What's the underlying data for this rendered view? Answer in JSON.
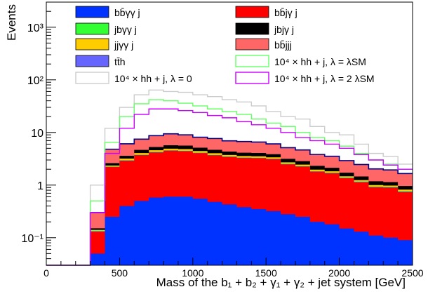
{
  "chart_data": {
    "type": "histogram",
    "stacked": true,
    "ylog": true,
    "xlabel": "Mass of the b₁ + b₂ + γ₁ + γ₂ + jet system [GeV]",
    "ylabel": "Events",
    "xlim": [
      0,
      2500
    ],
    "ylim": [
      0.03,
      3000
    ],
    "x_ticks": [
      0,
      500,
      1000,
      1500,
      2000,
      2500
    ],
    "y_ticks": [
      {
        "value": 0.1,
        "label": "10⁻¹"
      },
      {
        "value": 1,
        "label": "1"
      },
      {
        "value": 10,
        "label": "10"
      },
      {
        "value": 100,
        "label": "10²"
      },
      {
        "value": 1000,
        "label": "10³"
      }
    ],
    "bin_edges": [
      0,
      100,
      200,
      300,
      400,
      500,
      600,
      700,
      800,
      900,
      1000,
      1100,
      1200,
      1300,
      1400,
      1500,
      1600,
      1700,
      1800,
      1900,
      2000,
      2100,
      2200,
      2300,
      2400,
      2500
    ],
    "legend": [
      {
        "label": "bb̄γγ j",
        "series": "bbaa",
        "style": "fill",
        "color": "#0033ff"
      },
      {
        "label": "bb̄jγ j",
        "series": "bbja",
        "style": "fill",
        "color": "#ff0000"
      },
      {
        "label": "jbγγ j",
        "series": "jbaa",
        "style": "fill",
        "color": "#33ff33"
      },
      {
        "label": "jbjγ j",
        "series": "jbja",
        "style": "fill",
        "color": "#000000"
      },
      {
        "label": "jjγγ j",
        "series": "jjaa",
        "style": "fill",
        "color": "#ffcc00"
      },
      {
        "label": "bb̄jjj",
        "series": "bbjj",
        "style": "fill",
        "color": "#ff6666"
      },
      {
        "label": "tt̄h",
        "series": "tth",
        "style": "fill",
        "color": "#6666ff"
      },
      {
        "label": "10⁴ × hh + j,  λ = λSM",
        "series": "hh_sm",
        "style": "line",
        "color": "#66ff66"
      },
      {
        "label": "10⁴ × hh + j,  λ = 0",
        "series": "hh_0",
        "style": "line",
        "color": "#cccccc"
      },
      {
        "label": "10⁴ × hh + j,  λ = 2 λSM",
        "series": "hh_2sm",
        "style": "line",
        "color": "#cc00ff"
      }
    ],
    "stack_order": [
      "bbaa",
      "bbja",
      "tth",
      "jbaa",
      "jjaa",
      "jbja",
      "bbjj"
    ],
    "stack_series": [
      {
        "id": "bbaa",
        "color": "#0033ff",
        "values": [
          0,
          0,
          0,
          0.05,
          0.25,
          0.4,
          0.5,
          0.58,
          0.6,
          0.6,
          0.55,
          0.48,
          0.43,
          0.38,
          0.35,
          0.32,
          0.28,
          0.25,
          0.2,
          0.18,
          0.15,
          0.13,
          0.11,
          0.1,
          0.09
        ]
      },
      {
        "id": "bbja",
        "color": "#ff0000",
        "values": [
          0,
          0,
          0,
          0.08,
          1.95,
          2.5,
          3.2,
          3.6,
          3.9,
          3.8,
          3.5,
          3.2,
          3.0,
          2.9,
          2.9,
          2.8,
          2.2,
          2.0,
          1.6,
          1.5,
          1.2,
          1.0,
          0.8,
          0.8,
          0.65
        ]
      },
      {
        "id": "tth",
        "color": "#6666ff",
        "values": [
          0,
          0,
          0,
          0.003,
          0.03,
          0.04,
          0.05,
          0.05,
          0.05,
          0.05,
          0.04,
          0.04,
          0.04,
          0.04,
          0.03,
          0.03,
          0.03,
          0.03,
          0.02,
          0.02,
          0.02,
          0.02,
          0.01,
          0.01,
          0.01
        ]
      },
      {
        "id": "jbaa",
        "color": "#33ff33",
        "values": [
          0,
          0,
          0,
          0.003,
          0.03,
          0.05,
          0.06,
          0.07,
          0.07,
          0.07,
          0.06,
          0.06,
          0.05,
          0.05,
          0.05,
          0.04,
          0.04,
          0.03,
          0.03,
          0.03,
          0.02,
          0.02,
          0.02,
          0.02,
          0.02
        ]
      },
      {
        "id": "jjaa",
        "color": "#ffcc00",
        "values": [
          0,
          0,
          0,
          0.005,
          0.1,
          0.2,
          0.25,
          0.3,
          0.3,
          0.3,
          0.28,
          0.25,
          0.22,
          0.2,
          0.2,
          0.18,
          0.15,
          0.14,
          0.12,
          0.1,
          0.08,
          0.07,
          0.06,
          0.05,
          0.05
        ]
      },
      {
        "id": "jbja",
        "color": "#000000",
        "values": [
          0,
          0,
          0,
          0.01,
          0.25,
          0.4,
          0.6,
          0.7,
          0.8,
          0.8,
          0.7,
          0.65,
          0.6,
          0.55,
          0.55,
          0.5,
          0.45,
          0.4,
          0.35,
          0.3,
          0.25,
          0.22,
          0.18,
          0.16,
          0.14
        ]
      },
      {
        "id": "bbjj",
        "color": "#ff6666",
        "values": [
          0,
          0,
          0,
          0.15,
          2.2,
          2.5,
          2.8,
          3.4,
          3.7,
          3.4,
          3.0,
          3.0,
          2.6,
          2.6,
          2.5,
          2.2,
          2.0,
          1.8,
          1.5,
          1.4,
          1.2,
          1.0,
          0.85,
          0.8,
          0.7
        ]
      }
    ],
    "line_series": [
      {
        "id": "hh_0",
        "color": "#cccccc",
        "values": [
          0,
          0,
          0,
          1.0,
          12,
          30,
          52,
          64,
          60,
          58,
          52,
          48,
          42,
          38,
          32,
          25,
          20,
          18,
          13,
          10,
          9,
          6,
          4,
          3.5,
          2.5
        ]
      },
      {
        "id": "hh_sm",
        "color": "#66ff66",
        "values": [
          0,
          0,
          0,
          0.5,
          6.5,
          20,
          35,
          42,
          40,
          36,
          32,
          28,
          25,
          22,
          18,
          15,
          13,
          10,
          8,
          7,
          5.5,
          4,
          3,
          2.5,
          2
        ]
      },
      {
        "id": "hh_2sm",
        "color": "#cc00ff",
        "values": [
          0,
          0,
          0,
          0.3,
          4,
          12,
          22,
          28,
          28,
          26,
          24,
          21,
          19,
          16,
          14,
          12,
          10,
          8,
          7,
          6,
          5,
          3.8,
          3,
          2.4,
          2
        ]
      }
    ]
  }
}
